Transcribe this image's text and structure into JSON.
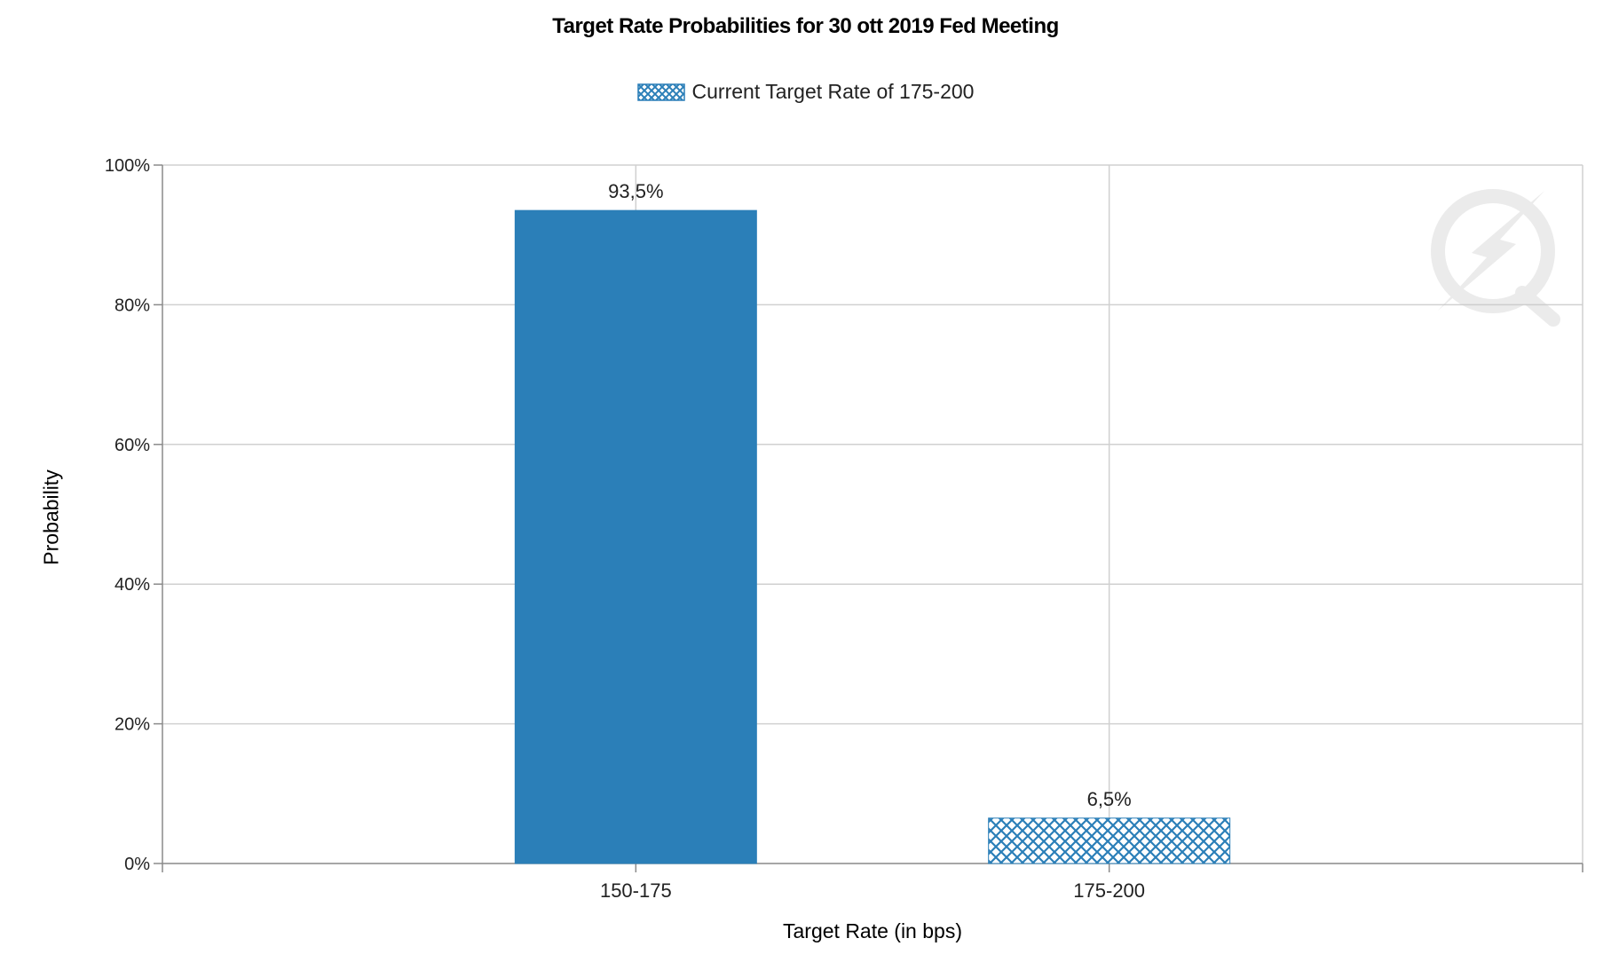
{
  "chart_data": {
    "type": "bar",
    "title": "Target Rate Probabilities for 30 ott 2019 Fed Meeting",
    "xlabel": "Target Rate (in bps)",
    "ylabel": "Probability",
    "categories": [
      "150-175",
      "175-200"
    ],
    "values": [
      93.5,
      6.5
    ],
    "value_labels": [
      "93,5%",
      "6,5%"
    ],
    "ylim": [
      0,
      100
    ],
    "yticks": [
      0,
      20,
      40,
      60,
      80,
      100
    ],
    "ytick_labels": [
      "0%",
      "20%",
      "40%",
      "60%",
      "80%",
      "100%"
    ],
    "legend": {
      "entries": [
        "Current Target Rate of 175-200"
      ],
      "position": "top-center"
    },
    "highlighted_category": "175-200",
    "grid": true,
    "colors": {
      "bar": "#2b7fb8",
      "pattern_bg": "#ffffff",
      "grid": "#d0d0d0",
      "axis": "#8a8a8a"
    }
  }
}
